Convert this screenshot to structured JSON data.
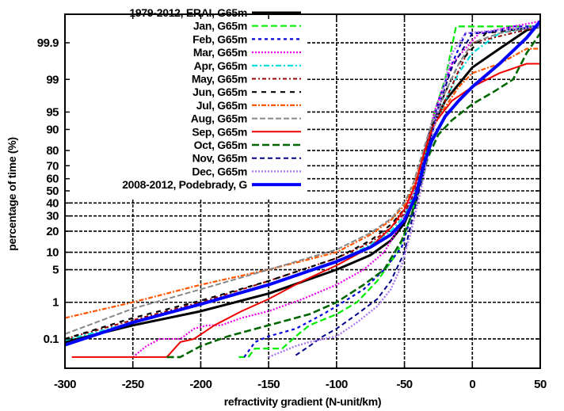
{
  "chart_data": {
    "type": "line",
    "title": "",
    "xlabel": "refractivity gradient (N-unit/km)",
    "ylabel": "percentage of time (%)",
    "xlim": [
      -300,
      50
    ],
    "ylim_percent": [
      0.01,
      99.99
    ],
    "yscale": "normal-probability",
    "grid": true,
    "legend_position": "top-left",
    "x_ticks": [
      -300,
      -250,
      -200,
      -150,
      -100,
      -50,
      0,
      50
    ],
    "x_tick_labels": [
      "-300",
      "-250",
      "-200",
      "-150",
      "-100",
      "-50",
      "0",
      "50"
    ],
    "y_ticks": [
      0.1,
      1,
      5,
      10,
      20,
      30,
      40,
      50,
      60,
      70,
      80,
      90,
      95,
      99,
      99.9
    ],
    "y_tick_labels": [
      "0.1",
      "1",
      "5",
      "10",
      "20",
      "30",
      "40",
      "50",
      "60",
      "70",
      "80",
      "90",
      "95",
      "99",
      "99.9"
    ],
    "series": [
      {
        "name": "1979-2012, ERAI, G65m",
        "color": "#000000",
        "dash": "solid",
        "width": 3,
        "points": [
          [
            -300,
            0.08
          ],
          [
            -250,
            0.25
          ],
          [
            -200,
            0.6
          ],
          [
            -150,
            1.6
          ],
          [
            -100,
            5
          ],
          [
            -75,
            9
          ],
          [
            -60,
            15
          ],
          [
            -50,
            25
          ],
          [
            -40,
            50
          ],
          [
            -35,
            75
          ],
          [
            -30,
            90
          ],
          [
            -20,
            97
          ],
          [
            0,
            99.5
          ],
          [
            20,
            99.85
          ],
          [
            40,
            99.96
          ],
          [
            50,
            99.97
          ]
        ]
      },
      {
        "name": "Jan, G65m",
        "color": "#00ee00",
        "dash": "dashed",
        "width": 2.2,
        "points": [
          [
            -172,
            0.026
          ],
          [
            -165,
            0.026
          ],
          [
            -160,
            0.05
          ],
          [
            -140,
            0.05
          ],
          [
            -130,
            0.12
          ],
          [
            -120,
            0.25
          ],
          [
            -100,
            0.5
          ],
          [
            -85,
            1
          ],
          [
            -70,
            3
          ],
          [
            -55,
            10
          ],
          [
            -45,
            30
          ],
          [
            -38,
            60
          ],
          [
            -33,
            85
          ],
          [
            -28,
            95
          ],
          [
            -20,
            99
          ],
          [
            -12,
            99.97
          ],
          [
            50,
            99.97
          ]
        ]
      },
      {
        "name": "Feb, G65m",
        "color": "#0000dd",
        "dash": "dotted-dash",
        "width": 2.2,
        "points": [
          [
            -168,
            0.026
          ],
          [
            -160,
            0.08
          ],
          [
            -150,
            0.12
          ],
          [
            -130,
            0.2
          ],
          [
            -110,
            0.5
          ],
          [
            -100,
            0.8
          ],
          [
            -80,
            2
          ],
          [
            -65,
            5
          ],
          [
            -52,
            12
          ],
          [
            -45,
            30
          ],
          [
            -38,
            60
          ],
          [
            -32,
            85
          ],
          [
            -25,
            97
          ],
          [
            -15,
            99.6
          ],
          [
            -5,
            99.95
          ],
          [
            10,
            99.95
          ],
          [
            30,
            99.97
          ],
          [
            50,
            99.97
          ]
        ]
      },
      {
        "name": "Mar, G65m",
        "color": "#ee00ee",
        "dash": "dotted",
        "width": 2.2,
        "points": [
          [
            -250,
            0.026
          ],
          [
            -240,
            0.06
          ],
          [
            -230,
            0.1
          ],
          [
            -215,
            0.1
          ],
          [
            -205,
            0.2
          ],
          [
            -195,
            0.25
          ],
          [
            -185,
            0.25
          ],
          [
            -170,
            0.4
          ],
          [
            -150,
            0.6
          ],
          [
            -125,
            1.2
          ],
          [
            -100,
            2.5
          ],
          [
            -80,
            5
          ],
          [
            -65,
            10
          ],
          [
            -52,
            25
          ],
          [
            -42,
            55
          ],
          [
            -35,
            80
          ],
          [
            -28,
            95
          ],
          [
            -15,
            99.6
          ],
          [
            5,
            99.95
          ],
          [
            50,
            99.98
          ]
        ]
      },
      {
        "name": "Apr, G65m",
        "color": "#00dddd",
        "dash": "dash-dot",
        "width": 2.2,
        "points": [
          [
            -300,
            0.09
          ],
          [
            -250,
            0.3
          ],
          [
            -200,
            0.9
          ],
          [
            -150,
            2.5
          ],
          [
            -100,
            7
          ],
          [
            -75,
            13
          ],
          [
            -60,
            20
          ],
          [
            -50,
            30
          ],
          [
            -42,
            50
          ],
          [
            -36,
            75
          ],
          [
            -30,
            90
          ],
          [
            -20,
            97
          ],
          [
            -10,
            99.3
          ],
          [
            0,
            99.8
          ],
          [
            20,
            99.95
          ],
          [
            50,
            99.97
          ]
        ]
      },
      {
        "name": "May, G65m",
        "color": "#990000",
        "dash": "dash-dot-dot",
        "width": 2,
        "points": [
          [
            -300,
            0.1
          ],
          [
            -250,
            0.35
          ],
          [
            -200,
            1
          ],
          [
            -150,
            3
          ],
          [
            -100,
            8
          ],
          [
            -75,
            14
          ],
          [
            -60,
            22
          ],
          [
            -50,
            32
          ],
          [
            -42,
            50
          ],
          [
            -36,
            75
          ],
          [
            -30,
            90
          ],
          [
            -20,
            97
          ],
          [
            -10,
            99.4
          ],
          [
            0,
            99.9
          ],
          [
            50,
            99.97
          ]
        ]
      },
      {
        "name": "Jun, G65m",
        "color": "#000000",
        "dash": "long-dash",
        "width": 2.2,
        "points": [
          [
            -300,
            0.1
          ],
          [
            -250,
            0.4
          ],
          [
            -200,
            1.1
          ],
          [
            -150,
            3
          ],
          [
            -100,
            8
          ],
          [
            -75,
            15
          ],
          [
            -60,
            24
          ],
          [
            -50,
            35
          ],
          [
            -42,
            55
          ],
          [
            -36,
            78
          ],
          [
            -30,
            91
          ],
          [
            -20,
            98
          ],
          [
            -10,
            99.6
          ],
          [
            10,
            99.95
          ],
          [
            50,
            99.97
          ]
        ]
      },
      {
        "name": "Jul, G65m",
        "color": "#ff5500",
        "dash": "dash-dot-fine",
        "width": 2.2,
        "points": [
          [
            -300,
            0.4
          ],
          [
            -250,
            1
          ],
          [
            -200,
            2.5
          ],
          [
            -150,
            5
          ],
          [
            -100,
            10
          ],
          [
            -75,
            18
          ],
          [
            -60,
            27
          ],
          [
            -50,
            38
          ],
          [
            -43,
            55
          ],
          [
            -37,
            75
          ],
          [
            -30,
            90
          ],
          [
            -20,
            96
          ],
          [
            -10,
            98.5
          ],
          [
            0,
            99.3
          ],
          [
            20,
            99.6
          ],
          [
            40,
            99.85
          ],
          [
            50,
            99.85
          ]
        ]
      },
      {
        "name": "Aug, G65m",
        "color": "#888888",
        "dash": "gray-dash",
        "width": 2,
        "points": [
          [
            -300,
            0.14
          ],
          [
            -250,
            0.7
          ],
          [
            -200,
            2
          ],
          [
            -150,
            5
          ],
          [
            -100,
            11
          ],
          [
            -75,
            19
          ],
          [
            -60,
            28
          ],
          [
            -50,
            40
          ],
          [
            -43,
            58
          ],
          [
            -37,
            78
          ],
          [
            -30,
            92
          ],
          [
            -20,
            98
          ],
          [
            -10,
            99.6
          ],
          [
            0,
            99.9
          ],
          [
            20,
            99.95
          ],
          [
            50,
            99.97
          ]
        ]
      },
      {
        "name": "Sep, G65m",
        "color": "#ee0000",
        "dash": "solid",
        "width": 2,
        "points": [
          [
            -295,
            0.026
          ],
          [
            -225,
            0.026
          ],
          [
            -215,
            0.08
          ],
          [
            -205,
            0.1
          ],
          [
            -190,
            0.25
          ],
          [
            -170,
            0.6
          ],
          [
            -150,
            1.2
          ],
          [
            -125,
            3
          ],
          [
            -100,
            6
          ],
          [
            -75,
            12
          ],
          [
            -60,
            22
          ],
          [
            -50,
            35
          ],
          [
            -42,
            55
          ],
          [
            -35,
            80
          ],
          [
            -28,
            92
          ],
          [
            -15,
            97
          ],
          [
            0,
            98.5
          ],
          [
            20,
            99.3
          ],
          [
            40,
            99.6
          ],
          [
            50,
            99.6
          ]
        ]
      },
      {
        "name": "Oct, G65m",
        "color": "#006600",
        "dash": "dashed-thick",
        "width": 2.6,
        "points": [
          [
            -225,
            0.026
          ],
          [
            -215,
            0.026
          ],
          [
            -200,
            0.06
          ],
          [
            -180,
            0.12
          ],
          [
            -150,
            0.25
          ],
          [
            -120,
            0.5
          ],
          [
            -100,
            1
          ],
          [
            -80,
            2.5
          ],
          [
            -65,
            5
          ],
          [
            -52,
            15
          ],
          [
            -45,
            30
          ],
          [
            -38,
            55
          ],
          [
            -33,
            75
          ],
          [
            -25,
            88
          ],
          [
            -15,
            93
          ],
          [
            0,
            96.5
          ],
          [
            15,
            98
          ],
          [
            30,
            99
          ],
          [
            40,
            99.8
          ],
          [
            50,
            99.95
          ]
        ]
      },
      {
        "name": "Nov, G65m",
        "color": "#000088",
        "dash": "dashed-fine",
        "width": 2,
        "points": [
          [
            -130,
            0.03
          ],
          [
            -120,
            0.06
          ],
          [
            -110,
            0.12
          ],
          [
            -100,
            0.2
          ],
          [
            -85,
            0.5
          ],
          [
            -70,
            1.2
          ],
          [
            -60,
            3
          ],
          [
            -50,
            10
          ],
          [
            -45,
            25
          ],
          [
            -38,
            55
          ],
          [
            -32,
            82
          ],
          [
            -25,
            96
          ],
          [
            -15,
            99.5
          ],
          [
            0,
            99.95
          ],
          [
            50,
            99.97
          ]
        ]
      },
      {
        "name": "Dec, G65m",
        "color": "#aa77ee",
        "dash": "dotted",
        "width": 2.4,
        "points": [
          [
            -150,
            0.026
          ],
          [
            -130,
            0.06
          ],
          [
            -120,
            0.08
          ],
          [
            -100,
            0.12
          ],
          [
            -85,
            0.3
          ],
          [
            -70,
            0.8
          ],
          [
            -60,
            2
          ],
          [
            -52,
            6
          ],
          [
            -45,
            20
          ],
          [
            -38,
            50
          ],
          [
            -32,
            80
          ],
          [
            -22,
            98
          ],
          [
            -15,
            99.8
          ],
          [
            -5,
            99.95
          ],
          [
            50,
            99.97
          ]
        ]
      },
      {
        "name": "2008-2012, Podebrady, G",
        "color": "#0000ff",
        "dash": "solid",
        "width": 4,
        "points": [
          [
            -300,
            0.065
          ],
          [
            -250,
            0.3
          ],
          [
            -200,
            0.9
          ],
          [
            -150,
            2.5
          ],
          [
            -100,
            7
          ],
          [
            -75,
            12
          ],
          [
            -60,
            18
          ],
          [
            -50,
            27
          ],
          [
            -42,
            45
          ],
          [
            -36,
            70
          ],
          [
            -30,
            85
          ],
          [
            -20,
            94
          ],
          [
            -10,
            97
          ],
          [
            0,
            98.5
          ],
          [
            20,
            99.6
          ],
          [
            40,
            99.93
          ],
          [
            50,
            99.98
          ]
        ]
      }
    ]
  }
}
